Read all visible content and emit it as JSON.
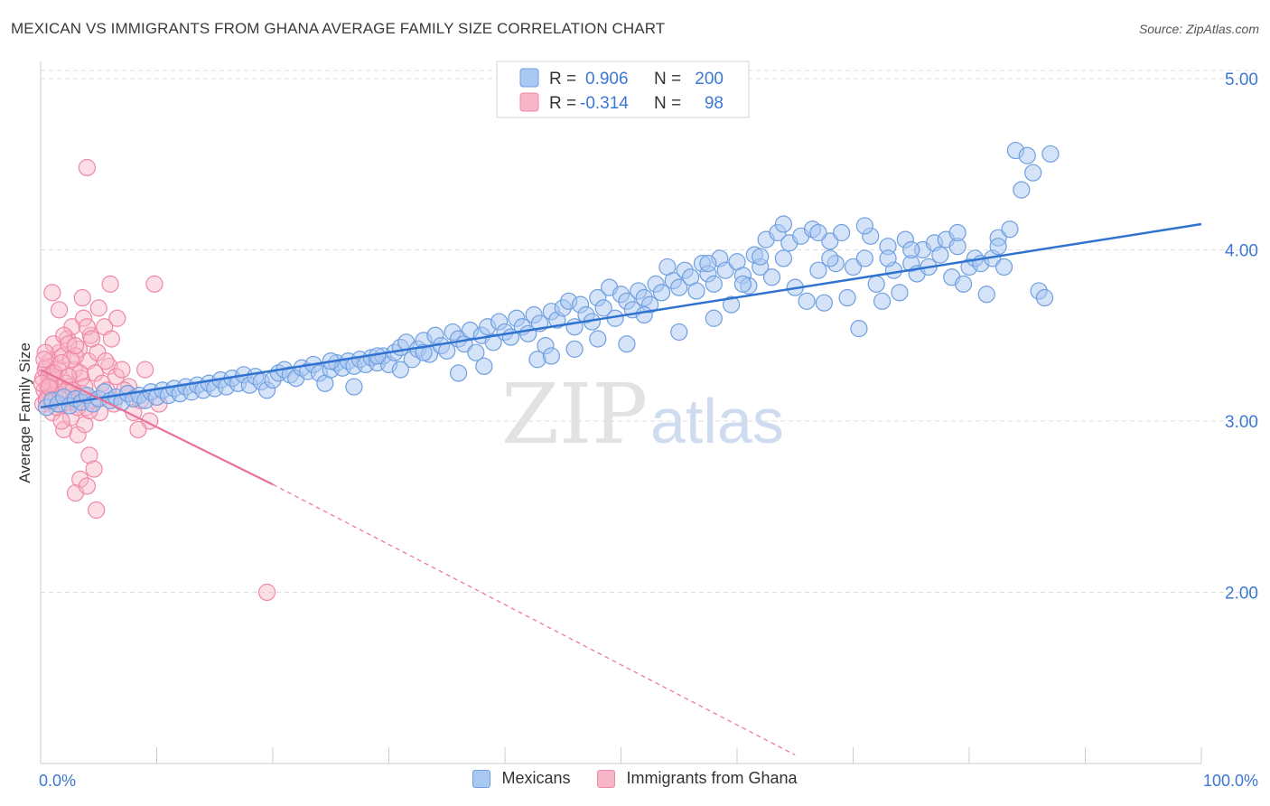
{
  "header": {
    "title": "MEXICAN VS IMMIGRANTS FROM GHANA AVERAGE FAMILY SIZE CORRELATION CHART",
    "source": "Source: ZipAtlas.com"
  },
  "watermark": {
    "zip": "ZIP",
    "atlas": "atlas"
  },
  "stats_legend": [
    {
      "r_label": "R =",
      "r_value": "0.906",
      "n_label": "N =",
      "n_value": "200"
    },
    {
      "r_label": "R =",
      "r_value": "-0.314",
      "n_label": "N =",
      "n_value": "98"
    }
  ],
  "colors": {
    "mexicans_fill": "#a9c8f2",
    "mexicans_stroke": "#6f9fe0",
    "mexicans_line": "#2f72d0",
    "ghana_fill": "#f6b6c8",
    "ghana_stroke": "#ef88a6",
    "ghana_line": "#e8729a",
    "value_text": "#3b78d4",
    "grid": "#dedede"
  },
  "chart_data": {
    "type": "scatter",
    "title": "MEXICAN VS IMMIGRANTS FROM GHANA AVERAGE FAMILY SIZE CORRELATION CHART",
    "xlabel": "",
    "ylabel": "Average Family Size",
    "xlim": [
      0,
      100
    ],
    "ylim": [
      1.0,
      5.1
    ],
    "x_tick_labels": [
      {
        "value": 0,
        "label": "0.0%"
      },
      {
        "value": 100,
        "label": "100.0%"
      }
    ],
    "y_tick_labels": [
      {
        "value": 2.0,
        "label": "2.00"
      },
      {
        "value": 3.0,
        "label": "3.00"
      },
      {
        "value": 4.0,
        "label": "4.00"
      },
      {
        "value": 5.0,
        "label": "5.00"
      }
    ],
    "x_minor_ticks": [
      10,
      20,
      30,
      40,
      50,
      60,
      70,
      80,
      90,
      100
    ],
    "grid": "horizontal dashed",
    "legend": "bottom-center",
    "series": [
      {
        "name": "Mexicans",
        "trend": {
          "x0": 0,
          "y0": 3.08,
          "x1": 100,
          "y1": 4.15
        },
        "points": [
          [
            0.5,
            3.08
          ],
          [
            1.0,
            3.12
          ],
          [
            1.5,
            3.1
          ],
          [
            2.0,
            3.14
          ],
          [
            2.5,
            3.09
          ],
          [
            3.0,
            3.13
          ],
          [
            3.5,
            3.11
          ],
          [
            4.0,
            3.15
          ],
          [
            4.5,
            3.1
          ],
          [
            5.0,
            3.13
          ],
          [
            5.5,
            3.17
          ],
          [
            6.0,
            3.12
          ],
          [
            6.5,
            3.14
          ],
          [
            7.0,
            3.11
          ],
          [
            7.5,
            3.16
          ],
          [
            8.0,
            3.13
          ],
          [
            8.5,
            3.15
          ],
          [
            9.0,
            3.12
          ],
          [
            9.5,
            3.17
          ],
          [
            10.0,
            3.14
          ],
          [
            10.5,
            3.18
          ],
          [
            11.0,
            3.15
          ],
          [
            11.5,
            3.19
          ],
          [
            12.0,
            3.16
          ],
          [
            12.5,
            3.2
          ],
          [
            13.0,
            3.17
          ],
          [
            13.5,
            3.21
          ],
          [
            14.0,
            3.18
          ],
          [
            14.5,
            3.22
          ],
          [
            15.0,
            3.19
          ],
          [
            15.5,
            3.24
          ],
          [
            16.0,
            3.2
          ],
          [
            16.5,
            3.25
          ],
          [
            17.0,
            3.22
          ],
          [
            17.5,
            3.27
          ],
          [
            18.0,
            3.21
          ],
          [
            18.5,
            3.26
          ],
          [
            19.0,
            3.23
          ],
          [
            19.5,
            3.18
          ],
          [
            20.0,
            3.24
          ],
          [
            20.5,
            3.28
          ],
          [
            21.0,
            3.3
          ],
          [
            21.5,
            3.27
          ],
          [
            22.0,
            3.25
          ],
          [
            22.5,
            3.31
          ],
          [
            23.0,
            3.29
          ],
          [
            23.5,
            3.33
          ],
          [
            24.0,
            3.28
          ],
          [
            24.5,
            3.22
          ],
          [
            25.0,
            3.3
          ],
          [
            25.5,
            3.34
          ],
          [
            26.0,
            3.31
          ],
          [
            26.5,
            3.35
          ],
          [
            27.0,
            3.32
          ],
          [
            27.5,
            3.36
          ],
          [
            28.0,
            3.33
          ],
          [
            28.5,
            3.37
          ],
          [
            29.0,
            3.34
          ],
          [
            29.5,
            3.38
          ],
          [
            30.0,
            3.33
          ],
          [
            30.5,
            3.4
          ],
          [
            31.0,
            3.43
          ],
          [
            31.5,
            3.46
          ],
          [
            32.0,
            3.36
          ],
          [
            32.5,
            3.42
          ],
          [
            33.0,
            3.47
          ],
          [
            33.5,
            3.39
          ],
          [
            34.0,
            3.5
          ],
          [
            34.5,
            3.44
          ],
          [
            35.0,
            3.41
          ],
          [
            35.5,
            3.52
          ],
          [
            36.0,
            3.48
          ],
          [
            36.5,
            3.45
          ],
          [
            37.0,
            3.53
          ],
          [
            37.5,
            3.4
          ],
          [
            38.0,
            3.5
          ],
          [
            38.5,
            3.55
          ],
          [
            39.0,
            3.46
          ],
          [
            39.5,
            3.58
          ],
          [
            40.0,
            3.52
          ],
          [
            40.5,
            3.49
          ],
          [
            41.0,
            3.6
          ],
          [
            41.5,
            3.55
          ],
          [
            42.0,
            3.51
          ],
          [
            42.5,
            3.62
          ],
          [
            43.0,
            3.57
          ],
          [
            43.5,
            3.44
          ],
          [
            44.0,
            3.64
          ],
          [
            44.5,
            3.59
          ],
          [
            45.0,
            3.66
          ],
          [
            45.5,
            3.7
          ],
          [
            46.0,
            3.55
          ],
          [
            46.5,
            3.68
          ],
          [
            47.0,
            3.62
          ],
          [
            47.5,
            3.58
          ],
          [
            48.0,
            3.72
          ],
          [
            48.5,
            3.66
          ],
          [
            49.0,
            3.78
          ],
          [
            49.5,
            3.6
          ],
          [
            50.0,
            3.74
          ],
          [
            50.5,
            3.7
          ],
          [
            51.0,
            3.65
          ],
          [
            51.5,
            3.76
          ],
          [
            52.0,
            3.72
          ],
          [
            52.5,
            3.68
          ],
          [
            53.0,
            3.8
          ],
          [
            53.5,
            3.75
          ],
          [
            54.0,
            3.9
          ],
          [
            54.5,
            3.82
          ],
          [
            55.0,
            3.78
          ],
          [
            55.5,
            3.88
          ],
          [
            56.0,
            3.84
          ],
          [
            56.5,
            3.76
          ],
          [
            57.0,
            3.92
          ],
          [
            57.5,
            3.86
          ],
          [
            58.0,
            3.8
          ],
          [
            58.5,
            3.95
          ],
          [
            59.0,
            3.88
          ],
          [
            59.5,
            3.68
          ],
          [
            60.0,
            3.93
          ],
          [
            60.5,
            3.85
          ],
          [
            61.0,
            3.79
          ],
          [
            61.5,
            3.97
          ],
          [
            62.0,
            3.9
          ],
          [
            62.5,
            4.06
          ],
          [
            63.0,
            3.84
          ],
          [
            63.5,
            4.1
          ],
          [
            64.0,
            3.95
          ],
          [
            64.5,
            4.04
          ],
          [
            65.0,
            3.78
          ],
          [
            65.5,
            4.08
          ],
          [
            66.0,
            3.7
          ],
          [
            66.5,
            4.12
          ],
          [
            67.0,
            3.88
          ],
          [
            67.5,
            3.69
          ],
          [
            68.0,
            4.05
          ],
          [
            68.5,
            3.92
          ],
          [
            69.0,
            4.1
          ],
          [
            69.5,
            3.72
          ],
          [
            70.0,
            3.9
          ],
          [
            70.5,
            3.54
          ],
          [
            71.0,
            3.95
          ],
          [
            71.5,
            4.08
          ],
          [
            72.0,
            3.8
          ],
          [
            72.5,
            3.7
          ],
          [
            73.0,
            4.02
          ],
          [
            73.5,
            3.88
          ],
          [
            74.0,
            3.75
          ],
          [
            74.5,
            4.06
          ],
          [
            75.0,
            3.92
          ],
          [
            75.5,
            3.86
          ],
          [
            76.0,
            4.0
          ],
          [
            76.5,
            3.9
          ],
          [
            77.0,
            4.04
          ],
          [
            77.5,
            3.97
          ],
          [
            78.0,
            4.06
          ],
          [
            78.5,
            3.84
          ],
          [
            79.0,
            4.02
          ],
          [
            79.5,
            3.8
          ],
          [
            80.0,
            3.9
          ],
          [
            80.5,
            3.95
          ],
          [
            81.0,
            3.92
          ],
          [
            81.5,
            3.74
          ],
          [
            82.0,
            3.95
          ],
          [
            82.5,
            4.07
          ],
          [
            83.0,
            3.9
          ],
          [
            83.5,
            4.12
          ],
          [
            84.0,
            4.58
          ],
          [
            84.5,
            4.35
          ],
          [
            85.0,
            4.55
          ],
          [
            85.5,
            4.45
          ],
          [
            86.0,
            3.76
          ],
          [
            86.5,
            3.72
          ],
          [
            87.0,
            4.56
          ],
          [
            42.8,
            3.36
          ],
          [
            50.5,
            3.45
          ],
          [
            55.0,
            3.52
          ],
          [
            58.0,
            3.6
          ],
          [
            60.5,
            3.8
          ],
          [
            46.0,
            3.42
          ],
          [
            38.2,
            3.32
          ],
          [
            48.0,
            3.48
          ],
          [
            52.0,
            3.62
          ],
          [
            44.0,
            3.38
          ],
          [
            36.0,
            3.28
          ],
          [
            31.0,
            3.3
          ],
          [
            27.0,
            3.2
          ],
          [
            25.0,
            3.35
          ],
          [
            29.0,
            3.38
          ],
          [
            33.0,
            3.4
          ],
          [
            64.0,
            4.15
          ],
          [
            67.0,
            4.1
          ],
          [
            71.0,
            4.14
          ],
          [
            75.0,
            4.0
          ],
          [
            79.0,
            4.1
          ],
          [
            82.5,
            4.02
          ],
          [
            68.0,
            3.95
          ],
          [
            62.0,
            3.96
          ],
          [
            57.5,
            3.92
          ],
          [
            73.0,
            3.95
          ]
        ]
      },
      {
        "name": "Immigrants from Ghana",
        "trend": {
          "x0": 0,
          "y0": 3.3,
          "x1": 20,
          "y1": 2.63
        },
        "trend_extension": {
          "x0": 20,
          "y0": 2.63,
          "x1": 65,
          "y1": 1.05
        },
        "points": [
          [
            0.2,
            3.25
          ],
          [
            0.4,
            3.3
          ],
          [
            0.6,
            3.2
          ],
          [
            0.8,
            3.35
          ],
          [
            1.0,
            3.28
          ],
          [
            1.2,
            3.15
          ],
          [
            1.4,
            3.22
          ],
          [
            1.6,
            3.4
          ],
          [
            0.3,
            3.18
          ],
          [
            0.5,
            3.32
          ],
          [
            0.7,
            3.26
          ],
          [
            0.9,
            3.12
          ],
          [
            1.1,
            3.45
          ],
          [
            1.3,
            3.24
          ],
          [
            1.5,
            3.3
          ],
          [
            1.7,
            3.1
          ],
          [
            1.9,
            3.38
          ],
          [
            2.1,
            3.22
          ],
          [
            2.3,
            3.48
          ],
          [
            2.5,
            3.2
          ],
          [
            2.7,
            3.55
          ],
          [
            2.9,
            3.3
          ],
          [
            3.1,
            3.15
          ],
          [
            3.3,
            3.42
          ],
          [
            3.5,
            3.25
          ],
          [
            3.7,
            3.6
          ],
          [
            3.9,
            3.08
          ],
          [
            4.1,
            3.35
          ],
          [
            4.3,
            3.5
          ],
          [
            4.5,
            3.12
          ],
          [
            4.7,
            3.28
          ],
          [
            4.9,
            3.4
          ],
          [
            5.1,
            3.05
          ],
          [
            5.3,
            3.22
          ],
          [
            5.5,
            3.55
          ],
          [
            5.7,
            3.18
          ],
          [
            5.9,
            3.32
          ],
          [
            6.1,
            3.48
          ],
          [
            6.3,
            3.1
          ],
          [
            6.5,
            3.26
          ],
          [
            1.0,
            3.75
          ],
          [
            1.6,
            3.65
          ],
          [
            2.0,
            3.5
          ],
          [
            2.4,
            3.45
          ],
          [
            3.0,
            3.38
          ],
          [
            3.6,
            3.72
          ],
          [
            4.0,
            3.55
          ],
          [
            4.4,
            3.48
          ],
          [
            5.0,
            3.66
          ],
          [
            5.6,
            3.35
          ],
          [
            6.0,
            3.8
          ],
          [
            6.6,
            3.6
          ],
          [
            7.0,
            3.3
          ],
          [
            7.6,
            3.2
          ],
          [
            8.0,
            3.05
          ],
          [
            8.6,
            3.12
          ],
          [
            9.0,
            3.3
          ],
          [
            9.4,
            3.0
          ],
          [
            9.8,
            3.8
          ],
          [
            10.2,
            3.1
          ],
          [
            2.0,
            2.95
          ],
          [
            2.6,
            3.02
          ],
          [
            3.2,
            2.92
          ],
          [
            3.8,
            2.98
          ],
          [
            4.2,
            2.8
          ],
          [
            4.6,
            2.72
          ],
          [
            3.4,
            2.66
          ],
          [
            3.0,
            2.58
          ],
          [
            4.0,
            2.62
          ],
          [
            4.8,
            2.48
          ],
          [
            4.0,
            4.48
          ],
          [
            19.5,
            2.0
          ],
          [
            1.0,
            3.05
          ],
          [
            1.8,
            3.0
          ],
          [
            2.2,
            3.18
          ],
          [
            2.8,
            3.12
          ],
          [
            3.2,
            3.08
          ],
          [
            3.6,
            3.16
          ],
          [
            0.2,
            3.1
          ],
          [
            0.6,
            3.14
          ],
          [
            1.4,
            3.08
          ],
          [
            2.6,
            3.36
          ],
          [
            3.0,
            3.44
          ],
          [
            3.4,
            3.28
          ],
          [
            3.8,
            3.2
          ],
          [
            4.2,
            3.06
          ],
          [
            0.4,
            3.4
          ],
          [
            0.8,
            3.22
          ],
          [
            1.2,
            3.28
          ],
          [
            1.8,
            3.34
          ],
          [
            2.4,
            3.26
          ],
          [
            2.8,
            3.18
          ],
          [
            0.1,
            3.22
          ],
          [
            0.3,
            3.36
          ],
          [
            0.5,
            3.12
          ],
          [
            0.7,
            3.2
          ],
          [
            7.2,
            3.18
          ],
          [
            8.4,
            2.95
          ]
        ]
      }
    ]
  },
  "bottom_legend": [
    {
      "label": "Mexicans"
    },
    {
      "label": "Immigrants from Ghana"
    }
  ]
}
